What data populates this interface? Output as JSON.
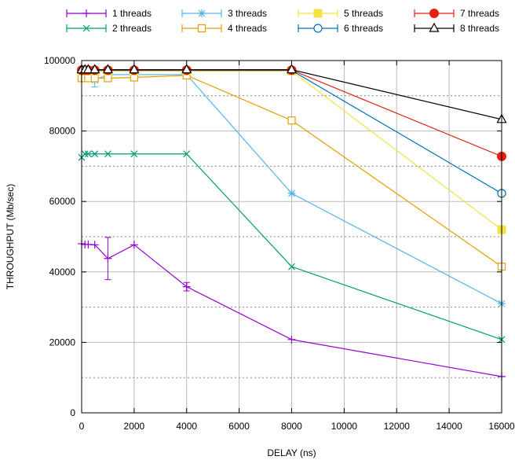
{
  "chart_data": {
    "type": "line",
    "xlabel": "DELAY (ns)",
    "ylabel": "THROUGHPUT (Mb/sec)",
    "xlim": [
      0,
      16000
    ],
    "ylim": [
      0,
      100000
    ],
    "x_ticks": [
      0,
      2000,
      4000,
      6000,
      8000,
      10000,
      12000,
      14000,
      16000
    ],
    "x_tick_labels": [
      "0",
      "2000",
      "4000",
      "6000",
      "8000",
      "10000",
      "12000",
      "14000",
      "16000"
    ],
    "y_ticks": [
      0,
      20000,
      40000,
      60000,
      80000,
      100000
    ],
    "y_tick_labels": [
      "0",
      "20000",
      "40000",
      "60000",
      "80000",
      "100000"
    ],
    "grid": {
      "x_major": true,
      "y_major": true,
      "y_minor_dotted": true
    },
    "legend_placement": "top",
    "x": [
      0,
      125,
      250,
      500,
      1000,
      2000,
      4000,
      8000,
      16000
    ],
    "series": [
      {
        "name": "1 threads",
        "color": "#9400d3",
        "marker": "plus",
        "values": [
          48000,
          47800,
          47800,
          47700,
          43800,
          47700,
          35800,
          20800,
          10300
        ],
        "error": [
          0,
          0,
          0,
          0,
          6000,
          0,
          1200,
          0,
          0
        ]
      },
      {
        "name": "2 threads",
        "color": "#009e73",
        "marker": "x",
        "values": [
          72500,
          73500,
          73500,
          73500,
          73500,
          73500,
          73500,
          41500,
          20800
        ],
        "error": [
          0,
          0,
          0,
          0,
          0,
          0,
          0,
          0,
          0
        ]
      },
      {
        "name": "3 threads",
        "color": "#56b4e9",
        "marker": "star",
        "values": [
          96500,
          96000,
          96000,
          94500,
          96000,
          96000,
          96000,
          62300,
          31000
        ],
        "error": [
          0,
          0,
          0,
          2000,
          0,
          0,
          0,
          0,
          0
        ]
      },
      {
        "name": "4 threads",
        "color": "#e69f00",
        "marker": "open-square",
        "values": [
          95000,
          95000,
          95000,
          95000,
          95000,
          95200,
          95800,
          83000,
          41500
        ],
        "error": [
          0,
          0,
          0,
          0,
          0,
          0,
          0,
          0,
          0
        ]
      },
      {
        "name": "5 threads",
        "color": "#f0e442",
        "marker": "filled-square",
        "values": [
          97000,
          97000,
          97000,
          97000,
          97000,
          97000,
          97000,
          97000,
          52000
        ],
        "error": [
          0,
          0,
          0,
          0,
          0,
          0,
          0,
          0,
          0
        ]
      },
      {
        "name": "6 threads",
        "color": "#0072b2",
        "marker": "open-circle",
        "values": [
          97200,
          97200,
          97200,
          97200,
          97200,
          97200,
          97200,
          97200,
          62300
        ],
        "error": [
          0,
          0,
          0,
          0,
          0,
          0,
          0,
          0,
          0
        ]
      },
      {
        "name": "7 threads",
        "color": "#e51e10",
        "marker": "filled-circle",
        "values": [
          97300,
          97300,
          97300,
          97300,
          97300,
          97300,
          97300,
          97300,
          72800
        ],
        "error": [
          0,
          0,
          0,
          0,
          0,
          0,
          0,
          0,
          0
        ]
      },
      {
        "name": "8 threads",
        "color": "#000000",
        "marker": "open-triangle",
        "values": [
          97400,
          97400,
          97400,
          97400,
          97400,
          97400,
          97400,
          97400,
          83300
        ],
        "error": [
          0,
          0,
          0,
          0,
          0,
          0,
          0,
          0,
          0
        ]
      }
    ]
  }
}
